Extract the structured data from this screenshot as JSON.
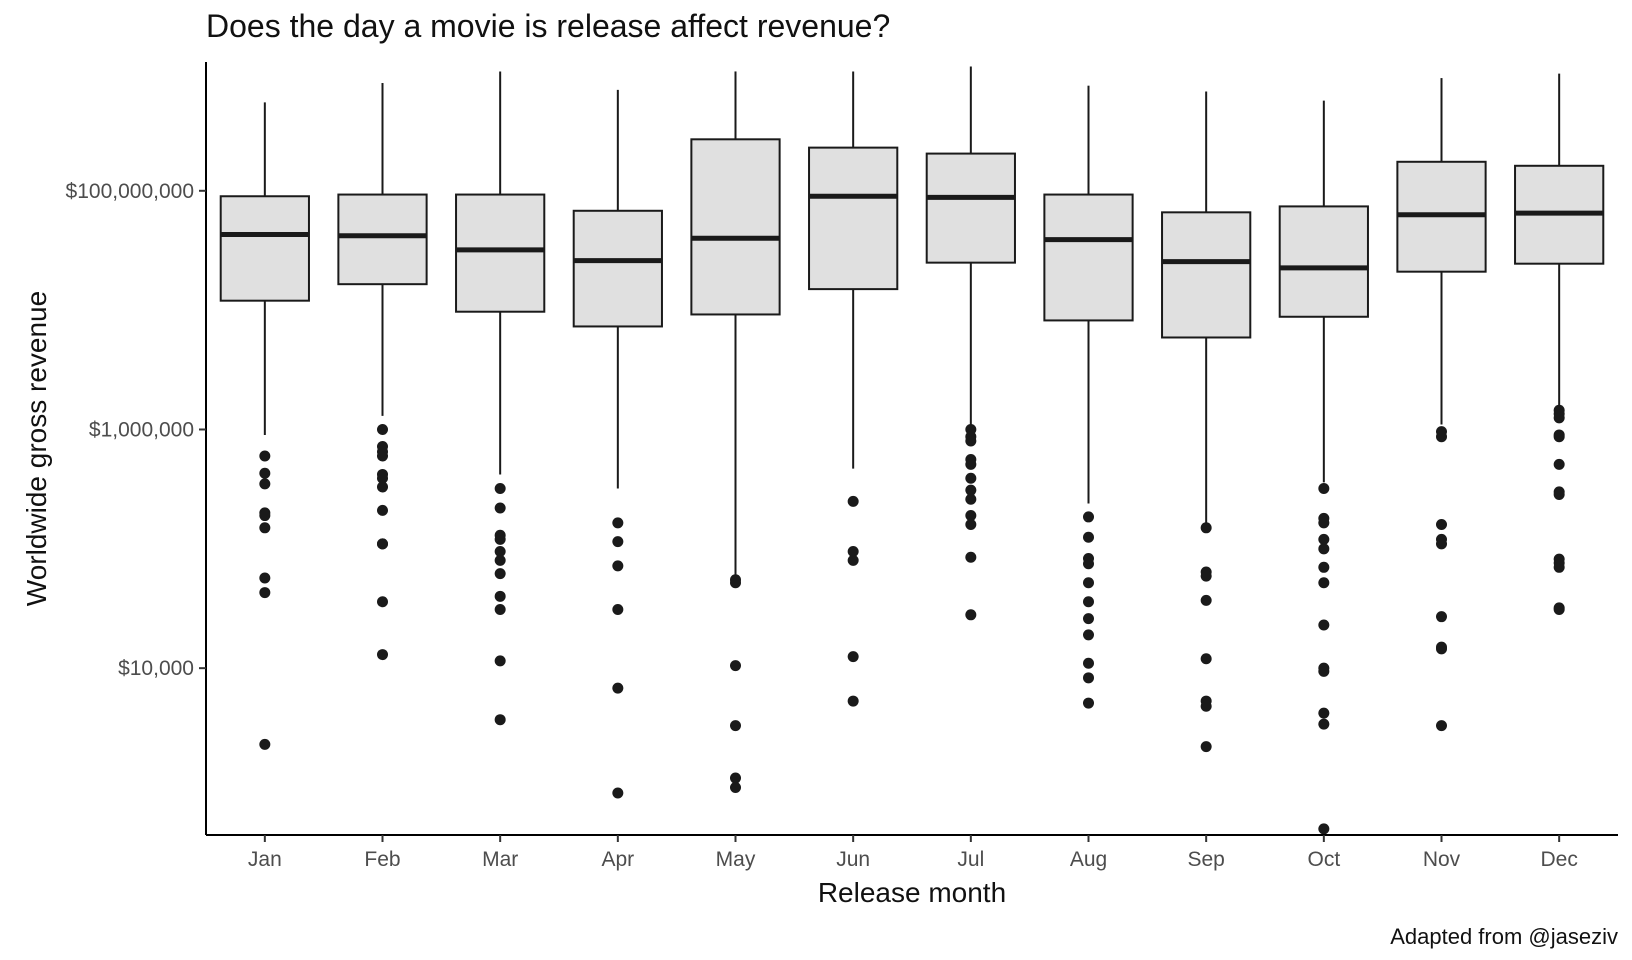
{
  "chart_data": {
    "type": "boxplot",
    "title": "Does the day a movie is release affect revenue?",
    "xlabel": "Release month",
    "ylabel": "Worldwide gross revenue",
    "caption": "Adapted from @jaseziv",
    "y_scale": "log10",
    "ylim": [
      400,
      1200000000
    ],
    "y_ticks": [
      10000,
      1000000,
      100000000
    ],
    "y_tick_labels": [
      "$10,000",
      "$1,000,000",
      "$100,000,000"
    ],
    "grid": false,
    "legend": "none",
    "box_fill": "#e0e0e0",
    "line_color": "#1a1a1a",
    "categories": [
      "Jan",
      "Feb",
      "Mar",
      "Apr",
      "May",
      "Jun",
      "Jul",
      "Aug",
      "Sep",
      "Oct",
      "Nov",
      "Dec"
    ],
    "boxes": [
      {
        "month": "Jan",
        "whisker_low": 900000,
        "q1": 12000000,
        "median": 43000000,
        "q3": 90000000,
        "whisker_high": 550000000,
        "outliers": [
          600000,
          430000,
          350000,
          200000,
          190000,
          150000,
          57000,
          43000,
          2300
        ]
      },
      {
        "month": "Feb",
        "whisker_low": 1300000,
        "q1": 16500000,
        "median": 42000000,
        "q3": 93000000,
        "whisker_high": 800000000,
        "outliers": [
          1000000,
          720000,
          650000,
          600000,
          420000,
          390000,
          330000,
          210000,
          110000,
          110000,
          36000,
          13000
        ]
      },
      {
        "month": "Mar",
        "whisker_low": 420000,
        "q1": 9700000,
        "median": 32000000,
        "q3": 93000000,
        "whisker_high": 1000000000,
        "outliers": [
          320000,
          220000,
          130000,
          120000,
          95000,
          80000,
          62000,
          40000,
          31000,
          11500,
          3700
        ]
      },
      {
        "month": "Apr",
        "whisker_low": 320000,
        "q1": 7300000,
        "median": 26000000,
        "q3": 68000000,
        "whisker_high": 700000000,
        "outliers": [
          165000,
          115000,
          72000,
          31000,
          6800,
          900
        ]
      },
      {
        "month": "May",
        "whisker_low": 60000,
        "q1": 9200000,
        "median": 40000000,
        "q3": 270000000,
        "whisker_high": 1000000000,
        "outliers": [
          55000,
          52000,
          10500,
          3300,
          1200,
          1000
        ]
      },
      {
        "month": "Jun",
        "whisker_low": 470000,
        "q1": 15000000,
        "median": 90000000,
        "q3": 230000000,
        "whisker_high": 1000000000,
        "outliers": [
          250000,
          95000,
          80000,
          12500,
          5300
        ]
      },
      {
        "month": "Jul",
        "whisker_low": 1100000,
        "q1": 25000000,
        "median": 88000000,
        "q3": 205000000,
        "whisker_high": 1100000000,
        "outliers": [
          1000000,
          870000,
          800000,
          560000,
          510000,
          390000,
          310000,
          260000,
          190000,
          160000,
          85000,
          28000
        ]
      },
      {
        "month": "Aug",
        "whisker_low": 240000,
        "q1": 8200000,
        "median": 39000000,
        "q3": 93000000,
        "whisker_high": 760000000,
        "outliers": [
          185000,
          125000,
          83000,
          75000,
          52000,
          36000,
          26000,
          19000,
          11000,
          8300,
          5100
        ]
      },
      {
        "month": "Sep",
        "whisker_low": 155000,
        "q1": 5900000,
        "median": 25500000,
        "q3": 66000000,
        "whisker_high": 680000000,
        "outliers": [
          150000,
          64000,
          59000,
          37000,
          12000,
          5300,
          4800,
          2200
        ]
      },
      {
        "month": "Oct",
        "whisker_low": 360000,
        "q1": 8800000,
        "median": 22600000,
        "q3": 74000000,
        "whisker_high": 570000000,
        "outliers": [
          320000,
          180000,
          165000,
          120000,
          100000,
          70000,
          52000,
          23000,
          10000,
          9400,
          4200,
          3400,
          450
        ]
      },
      {
        "month": "Nov",
        "whisker_low": 1100000,
        "q1": 21000000,
        "median": 63000000,
        "q3": 175000000,
        "whisker_high": 880000000,
        "outliers": [
          960000,
          870000,
          160000,
          120000,
          110000,
          27000,
          15000,
          14500,
          3300
        ]
      },
      {
        "month": "Dec",
        "whisker_low": 1500000,
        "q1": 24500000,
        "median": 65000000,
        "q3": 162000000,
        "whisker_high": 960000000,
        "outliers": [
          1450000,
          1350000,
          1250000,
          900000,
          870000,
          510000,
          300000,
          285000,
          82000,
          76000,
          70000,
          32000,
          31000
        ]
      }
    ]
  }
}
